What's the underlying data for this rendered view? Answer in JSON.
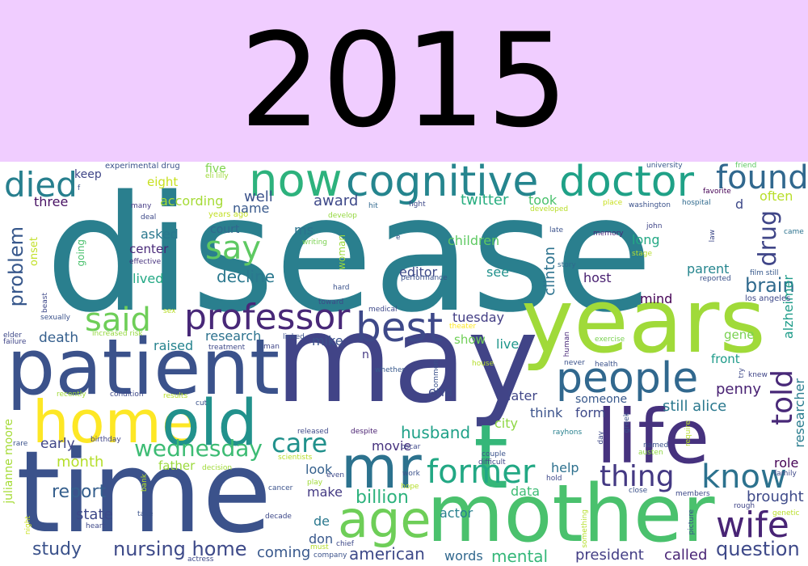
{
  "header": {
    "year": "2015",
    "background_color": "#f0cdff",
    "text_color": "#000000"
  },
  "word_cloud": {
    "background_color": "#ffffff",
    "palette": "viridis",
    "words": [
      {
        "text": "disease",
        "color": "#2a7f8e"
      },
      {
        "text": "may",
        "color": "#414487"
      },
      {
        "text": "time",
        "color": "#3b528b"
      },
      {
        "text": "years",
        "color": "#a0da39"
      },
      {
        "text": "mother",
        "color": "#4ac16d"
      },
      {
        "text": "patient",
        "color": "#3b528b"
      },
      {
        "text": "home",
        "color": "#fde725"
      },
      {
        "text": "old",
        "color": "#21918c"
      },
      {
        "text": "life",
        "color": "#46327e"
      },
      {
        "text": "mr",
        "color": "#2c728e"
      },
      {
        "text": "t",
        "color": "#35b779"
      },
      {
        "text": "cognitive",
        "color": "#25858e"
      },
      {
        "text": "now",
        "color": "#2db27d"
      },
      {
        "text": "doctor",
        "color": "#1fa187"
      },
      {
        "text": "people",
        "color": "#31688e"
      },
      {
        "text": "best",
        "color": "#3e4989"
      },
      {
        "text": "professor",
        "color": "#482878"
      },
      {
        "text": "age",
        "color": "#6ece58"
      },
      {
        "text": "former",
        "color": "#22a884"
      },
      {
        "text": "know",
        "color": "#2c728e"
      },
      {
        "text": "wife",
        "color": "#482475"
      },
      {
        "text": "found",
        "color": "#31688e"
      },
      {
        "text": "said",
        "color": "#6ece58"
      },
      {
        "text": "say",
        "color": "#5ec962"
      },
      {
        "text": "died",
        "color": "#277f8e"
      },
      {
        "text": "told",
        "color": "#482878"
      },
      {
        "text": "drug",
        "color": "#404688"
      },
      {
        "text": "thing",
        "color": "#443983"
      },
      {
        "text": "care",
        "color": "#21918c"
      },
      {
        "text": "wednesday",
        "color": "#3dbc74"
      },
      {
        "text": "problem",
        "color": "#38588c"
      },
      {
        "text": "brain",
        "color": "#306a8e"
      },
      {
        "text": "question",
        "color": "#3e4989"
      },
      {
        "text": "nursing home",
        "color": "#3e4a89"
      },
      {
        "text": "study",
        "color": "#3b528b"
      },
      {
        "text": "report",
        "color": "#355f8d"
      },
      {
        "text": "husband",
        "color": "#1fa188"
      },
      {
        "text": "billion",
        "color": "#2db27d"
      },
      {
        "text": "mental",
        "color": "#35b779"
      },
      {
        "text": "american",
        "color": "#3e4a89"
      },
      {
        "text": "coming",
        "color": "#38588c"
      },
      {
        "text": "president",
        "color": "#433e85"
      },
      {
        "text": "called",
        "color": "#482475"
      },
      {
        "text": "words",
        "color": "#31688e"
      },
      {
        "text": "decline",
        "color": "#2a788e"
      },
      {
        "text": "clinton",
        "color": "#2c728e"
      },
      {
        "text": "penny",
        "color": "#482173"
      },
      {
        "text": "still alice",
        "color": "#2a788e"
      },
      {
        "text": "alzheimer",
        "color": "#1e9c89"
      },
      {
        "text": "researcher",
        "color": "#287c8e"
      },
      {
        "text": "brought",
        "color": "#3e4a89"
      },
      {
        "text": "role",
        "color": "#440154"
      },
      {
        "text": "mike",
        "color": "#3b528b"
      },
      {
        "text": "research",
        "color": "#2c728e"
      },
      {
        "text": "death",
        "color": "#355f8d"
      },
      {
        "text": "raised",
        "color": "#25838e"
      },
      {
        "text": "month",
        "color": "#b5de2b"
      },
      {
        "text": "father",
        "color": "#9bd93c"
      },
      {
        "text": "early",
        "color": "#404688"
      },
      {
        "text": "julianne moore",
        "color": "#a5db36"
      },
      {
        "text": "state",
        "color": "#3e4989"
      },
      {
        "text": "make",
        "color": "#443a83"
      },
      {
        "text": "look",
        "color": "#35608d"
      },
      {
        "text": "movie",
        "color": "#46327e"
      },
      {
        "text": "actor",
        "color": "#27808e"
      },
      {
        "text": "data",
        "color": "#3dbc74"
      },
      {
        "text": "help",
        "color": "#2d708e"
      },
      {
        "text": "later",
        "color": "#404688"
      },
      {
        "text": "think",
        "color": "#3b528b"
      },
      {
        "text": "form",
        "color": "#3e4989"
      },
      {
        "text": "someone",
        "color": "#38588c"
      },
      {
        "text": "end",
        "color": "#3e4a89"
      },
      {
        "text": "city",
        "color": "#8fd744"
      },
      {
        "text": "live",
        "color": "#1f968b"
      },
      {
        "text": "show",
        "color": "#70cf57"
      },
      {
        "text": "tuesday",
        "color": "#433e85"
      },
      {
        "text": "editor",
        "color": "#3e4a89"
      },
      {
        "text": "see",
        "color": "#21918c"
      },
      {
        "text": "children",
        "color": "#5ec962"
      },
      {
        "text": "host",
        "color": "#481f70"
      },
      {
        "text": "long",
        "color": "#22a884"
      },
      {
        "text": "mind",
        "color": "#440154"
      },
      {
        "text": "parent",
        "color": "#25858e"
      },
      {
        "text": "gene",
        "color": "#7ad151"
      },
      {
        "text": "front",
        "color": "#1e9b8a"
      },
      {
        "text": "often",
        "color": "#b8de29"
      },
      {
        "text": "d",
        "color": "#3e4989"
      },
      {
        "text": "twitter",
        "color": "#28ae80"
      },
      {
        "text": "took",
        "color": "#4ac16d"
      },
      {
        "text": "award",
        "color": "#3e4989"
      },
      {
        "text": "well",
        "color": "#3b528b"
      },
      {
        "text": "name",
        "color": "#38598c"
      },
      {
        "text": "court",
        "color": "#31688e"
      },
      {
        "text": "ms",
        "color": "#2c728e"
      },
      {
        "text": "asked",
        "color": "#2a788e"
      },
      {
        "text": "center",
        "color": "#482878"
      },
      {
        "text": "lived",
        "color": "#22a884"
      },
      {
        "text": "five",
        "color": "#7fd34e"
      },
      {
        "text": "eight",
        "color": "#c8e020"
      },
      {
        "text": "according",
        "color": "#a5db36"
      },
      {
        "text": "three",
        "color": "#471063"
      },
      {
        "text": "keep",
        "color": "#404688"
      },
      {
        "text": "going",
        "color": "#4ac16d"
      },
      {
        "text": "woman",
        "color": "#9bd93c"
      },
      {
        "text": "onset",
        "color": "#c0df25"
      },
      {
        "text": "de",
        "color": "#2a788e"
      },
      {
        "text": "don",
        "color": "#38588c"
      },
      {
        "text": "n",
        "color": "#443983"
      },
      {
        "text": "experimental drug",
        "color": "#3b528b"
      },
      {
        "text": "eli lilly",
        "color": "#a0da39"
      },
      {
        "text": "years ago",
        "color": "#c2df23"
      },
      {
        "text": "develop",
        "color": "#95d840"
      },
      {
        "text": "developed",
        "color": "#b8de29"
      },
      {
        "text": "fight",
        "color": "#3e4989"
      },
      {
        "text": "hit",
        "color": "#31688e"
      },
      {
        "text": "place",
        "color": "#c8e020"
      },
      {
        "text": "washington",
        "color": "#3b528b"
      },
      {
        "text": "hospital",
        "color": "#306a8e"
      },
      {
        "text": "university",
        "color": "#38588c"
      },
      {
        "text": "friend",
        "color": "#5ec962"
      },
      {
        "text": "favorite",
        "color": "#440154"
      },
      {
        "text": "came",
        "color": "#2c728e"
      },
      {
        "text": "film still",
        "color": "#38598c"
      },
      {
        "text": "los angeles",
        "color": "#3e4989"
      },
      {
        "text": "reported",
        "color": "#3b528b"
      },
      {
        "text": "memory",
        "color": "#482878"
      },
      {
        "text": "late",
        "color": "#3b528b"
      },
      {
        "text": "story",
        "color": "#306a8e"
      },
      {
        "text": "john",
        "color": "#404688"
      },
      {
        "text": "stage",
        "color": "#b5de2b"
      },
      {
        "text": "law",
        "color": "#3e4989"
      },
      {
        "text": "many",
        "color": "#443983"
      },
      {
        "text": "deal",
        "color": "#3e4a89"
      },
      {
        "text": "effective",
        "color": "#46327e"
      },
      {
        "text": "writing",
        "color": "#7ad151"
      },
      {
        "text": "e",
        "color": "#3b528b"
      },
      {
        "text": "performance",
        "color": "#3b528b"
      },
      {
        "text": "hard",
        "color": "#3b528b"
      },
      {
        "text": "toward",
        "color": "#3e4989"
      },
      {
        "text": "medical",
        "color": "#3e4989"
      },
      {
        "text": "theater",
        "color": "#fde725"
      },
      {
        "text": "linked",
        "color": "#3b528b"
      },
      {
        "text": "man",
        "color": "#404688"
      },
      {
        "text": "treatment",
        "color": "#3e4989"
      },
      {
        "text": "increased risk",
        "color": "#95d840"
      },
      {
        "text": "sex",
        "color": "#b8de29"
      },
      {
        "text": "sexually",
        "color": "#3b528b"
      },
      {
        "text": "beast",
        "color": "#3e4989"
      },
      {
        "text": "elder",
        "color": "#3e4989"
      },
      {
        "text": "failure",
        "color": "#404688"
      },
      {
        "text": "human",
        "color": "#482878"
      },
      {
        "text": "exercise",
        "color": "#7ad151"
      },
      {
        "text": "health",
        "color": "#3b528b"
      },
      {
        "text": "never",
        "color": "#3b528b"
      },
      {
        "text": "try",
        "color": "#3e4989"
      },
      {
        "text": "knew",
        "color": "#404688"
      },
      {
        "text": "common",
        "color": "#3b528b"
      },
      {
        "text": "whether",
        "color": "#38598c"
      },
      {
        "text": "house",
        "color": "#b5de2b"
      },
      {
        "text": "recently",
        "color": "#a0da39"
      },
      {
        "text": "condition",
        "color": "#3e4989"
      },
      {
        "text": "results",
        "color": "#b8de29"
      },
      {
        "text": "cut",
        "color": "#3b528b"
      },
      {
        "text": "released",
        "color": "#3e4989"
      },
      {
        "text": "despite",
        "color": "#481f70"
      },
      {
        "text": "rayhons",
        "color": "#27808e"
      },
      {
        "text": "greek",
        "color": "#3b528b"
      },
      {
        "text": "day",
        "color": "#3e4989"
      },
      {
        "text": "require",
        "color": "#b5de2b"
      },
      {
        "text": "named",
        "color": "#3b528b"
      },
      {
        "text": "austen",
        "color": "#8fd744"
      },
      {
        "text": "family",
        "color": "#3e4989"
      },
      {
        "text": "rare",
        "color": "#3b528b"
      },
      {
        "text": "birthday",
        "color": "#404688"
      },
      {
        "text": "decision",
        "color": "#a0da39"
      },
      {
        "text": "bank",
        "color": "#b5de2b"
      },
      {
        "text": "cancer",
        "color": "#3b528b"
      },
      {
        "text": "scientists",
        "color": "#b8de29"
      },
      {
        "text": "oscar",
        "color": "#3e4989"
      },
      {
        "text": "couple",
        "color": "#3b528b"
      },
      {
        "text": "difficult",
        "color": "#404688"
      },
      {
        "text": "even",
        "color": "#3e4989"
      },
      {
        "text": "play",
        "color": "#a0da39"
      },
      {
        "text": "work",
        "color": "#3b528b"
      },
      {
        "text": "hope",
        "color": "#b5de2b"
      },
      {
        "text": "hold",
        "color": "#3e4989"
      },
      {
        "text": "close",
        "color": "#3b528b"
      },
      {
        "text": "members",
        "color": "#3e4989"
      },
      {
        "text": "picture",
        "color": "#3b528b"
      },
      {
        "text": "rough",
        "color": "#404688"
      },
      {
        "text": "genetic",
        "color": "#b8de29"
      },
      {
        "text": "something",
        "color": "#b5de2b"
      },
      {
        "text": "night",
        "color": "#c8e020"
      },
      {
        "text": "heart",
        "color": "#3e4989"
      },
      {
        "text": "take",
        "color": "#3b528b"
      },
      {
        "text": "decade",
        "color": "#3e4989"
      },
      {
        "text": "must",
        "color": "#b5de2b"
      },
      {
        "text": "chief",
        "color": "#3e4989"
      },
      {
        "text": "company",
        "color": "#3b528b"
      },
      {
        "text": "actress",
        "color": "#3e4989"
      },
      {
        "text": "f",
        "color": "#3b528b"
      }
    ]
  }
}
